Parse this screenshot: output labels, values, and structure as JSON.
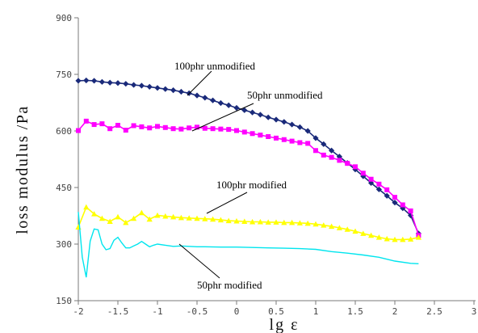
{
  "chart_data": {
    "type": "line",
    "title": "",
    "xlabel": "lg ε",
    "ylabel": "loss modulus /Pa",
    "xlim": [
      -2,
      3
    ],
    "ylim": [
      150,
      900
    ],
    "xticks": [
      -2,
      -1.5,
      -1,
      -0.5,
      0,
      0.5,
      1,
      1.5,
      2,
      2.5,
      3
    ],
    "yticks": [
      150,
      300,
      450,
      600,
      750,
      900
    ],
    "xtick_labels": [
      "-2",
      "-1.5",
      "-1",
      "-0.5",
      "0",
      "0.5",
      "1",
      "1.5",
      "2",
      "2.5",
      "3"
    ],
    "ytick_labels": [
      "150",
      "300",
      "450",
      "600",
      "750",
      "900"
    ],
    "grid": false,
    "legend": "none",
    "series": [
      {
        "name": "100phr unmodified",
        "color": "#1a2a7a",
        "marker": "diamond",
        "x": [
          -2.0,
          -1.9,
          -1.8,
          -1.7,
          -1.6,
          -1.5,
          -1.4,
          -1.3,
          -1.2,
          -1.1,
          -1.0,
          -0.9,
          -0.8,
          -0.7,
          -0.6,
          -0.5,
          -0.4,
          -0.3,
          -0.2,
          -0.1,
          0.0,
          0.1,
          0.2,
          0.3,
          0.4,
          0.5,
          0.6,
          0.7,
          0.8,
          0.9,
          1.0,
          1.1,
          1.2,
          1.3,
          1.4,
          1.5,
          1.6,
          1.7,
          1.8,
          1.9,
          2.0,
          2.1,
          2.2,
          2.3
        ],
        "values": [
          733,
          734,
          733,
          730,
          728,
          727,
          725,
          722,
          720,
          717,
          714,
          711,
          708,
          704,
          700,
          694,
          688,
          681,
          674,
          668,
          661,
          655,
          649,
          643,
          636,
          630,
          624,
          617,
          610,
          600,
          581,
          565,
          548,
          532,
          515,
          498,
          480,
          462,
          445,
          428,
          410,
          395,
          376,
          328
        ]
      },
      {
        "name": "50phr unmodified",
        "color": "#ff00ff",
        "marker": "square",
        "x": [
          -2.0,
          -1.9,
          -1.8,
          -1.7,
          -1.6,
          -1.5,
          -1.4,
          -1.3,
          -1.2,
          -1.1,
          -1.0,
          -0.9,
          -0.8,
          -0.7,
          -0.6,
          -0.5,
          -0.4,
          -0.3,
          -0.2,
          -0.1,
          0.0,
          0.1,
          0.2,
          0.3,
          0.4,
          0.5,
          0.6,
          0.7,
          0.8,
          0.9,
          1.0,
          1.1,
          1.2,
          1.3,
          1.4,
          1.5,
          1.6,
          1.7,
          1.8,
          1.9,
          2.0,
          2.1,
          2.2,
          2.3
        ],
        "values": [
          601,
          626,
          617,
          619,
          606,
          615,
          602,
          614,
          611,
          608,
          612,
          609,
          606,
          605,
          608,
          610,
          607,
          606,
          605,
          604,
          601,
          597,
          593,
          589,
          585,
          581,
          577,
          573,
          569,
          567,
          548,
          536,
          530,
          522,
          514,
          505,
          488,
          472,
          459,
          444,
          424,
          404,
          388,
          323
        ]
      },
      {
        "name": "100phr modified",
        "color": "#ffff00",
        "marker": "triangle",
        "x": [
          -2.0,
          -1.9,
          -1.8,
          -1.7,
          -1.6,
          -1.5,
          -1.4,
          -1.3,
          -1.2,
          -1.1,
          -1.0,
          -0.9,
          -0.8,
          -0.7,
          -0.6,
          -0.5,
          -0.4,
          -0.3,
          -0.2,
          -0.1,
          0.0,
          0.1,
          0.2,
          0.3,
          0.4,
          0.5,
          0.6,
          0.7,
          0.8,
          0.9,
          1.0,
          1.1,
          1.2,
          1.3,
          1.4,
          1.5,
          1.6,
          1.7,
          1.8,
          1.9,
          2.0,
          2.1,
          2.2,
          2.3
        ],
        "values": [
          345,
          398,
          380,
          368,
          360,
          372,
          357,
          368,
          383,
          366,
          376,
          374,
          372,
          370,
          369,
          368,
          367,
          366,
          364,
          362,
          361,
          360,
          359,
          359,
          358,
          358,
          357,
          357,
          356,
          355,
          353,
          350,
          347,
          343,
          339,
          334,
          328,
          323,
          318,
          314,
          312,
          312,
          313,
          318
        ]
      },
      {
        "name": "50phr modified",
        "color": "#00e5ee",
        "marker": "none",
        "x": [
          -2.0,
          -1.95,
          -1.9,
          -1.85,
          -1.8,
          -1.75,
          -1.7,
          -1.65,
          -1.6,
          -1.55,
          -1.5,
          -1.45,
          -1.4,
          -1.35,
          -1.3,
          -1.25,
          -1.2,
          -1.15,
          -1.1,
          -1.05,
          -1.0,
          -0.9,
          -0.8,
          -0.7,
          -0.6,
          -0.5,
          -0.4,
          -0.2,
          0.0,
          0.2,
          0.4,
          0.6,
          0.8,
          1.0,
          1.2,
          1.4,
          1.6,
          1.8,
          2.0,
          2.2,
          2.3
        ],
        "values": [
          385,
          265,
          212,
          308,
          340,
          338,
          300,
          285,
          288,
          310,
          318,
          303,
          290,
          290,
          295,
          300,
          307,
          300,
          293,
          297,
          300,
          297,
          294,
          295,
          294,
          293,
          293,
          292,
          292,
          291,
          290,
          289,
          288,
          286,
          280,
          276,
          271,
          265,
          255,
          249,
          248
        ]
      }
    ],
    "annotations": [
      {
        "text": "100phr unmodified",
        "series": 0
      },
      {
        "text": "50phr unmodified",
        "series": 1
      },
      {
        "text": "100phr modified",
        "series": 2
      },
      {
        "text": "50phr modified",
        "series": 3
      }
    ]
  }
}
